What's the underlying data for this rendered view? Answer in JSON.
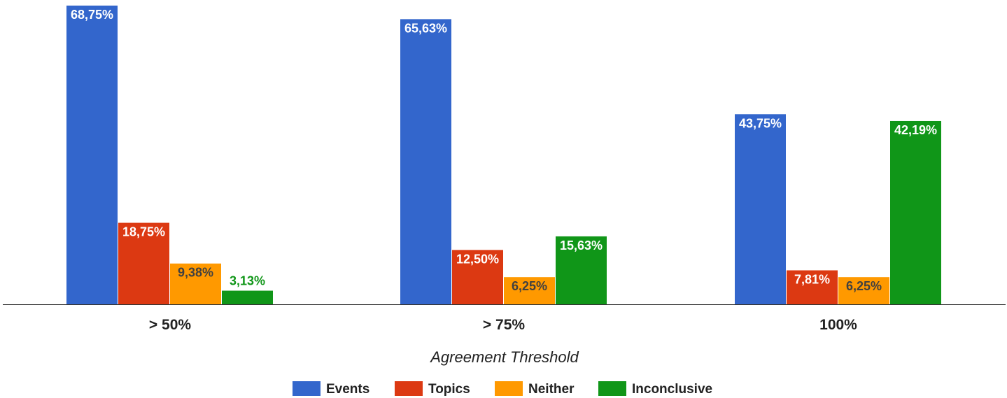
{
  "chart_data": {
    "type": "bar",
    "title": "",
    "xlabel": "Agreement Threshold",
    "ylabel": "",
    "categories": [
      "> 50%",
      "> 75%",
      "100%"
    ],
    "series": [
      {
        "name": "Events",
        "color": "#3366cc",
        "values": [
          68.75,
          65.63,
          43.75
        ],
        "labels": [
          "68,75%",
          "65,63%",
          "43,75%"
        ],
        "label_color": "#ffffff"
      },
      {
        "name": "Topics",
        "color": "#dc3912",
        "values": [
          18.75,
          12.5,
          7.81
        ],
        "labels": [
          "18,75%",
          "12,50%",
          "7,81%"
        ],
        "label_color": "#ffffff"
      },
      {
        "name": "Neither",
        "color": "#ff9900",
        "values": [
          9.38,
          6.25,
          6.25
        ],
        "labels": [
          "9,38%",
          "6,25%",
          "6,25%"
        ],
        "label_color": "#404040"
      },
      {
        "name": "Inconclusive",
        "color": "#109618",
        "values": [
          3.13,
          15.63,
          42.19
        ],
        "labels": [
          "3,13%",
          "15,63%",
          "42,19%"
        ],
        "label_color": "#ffffff",
        "label_outside_color": "#109618"
      }
    ],
    "ylim": [
      0,
      70
    ],
    "grid": false,
    "legend_position": "bottom"
  }
}
